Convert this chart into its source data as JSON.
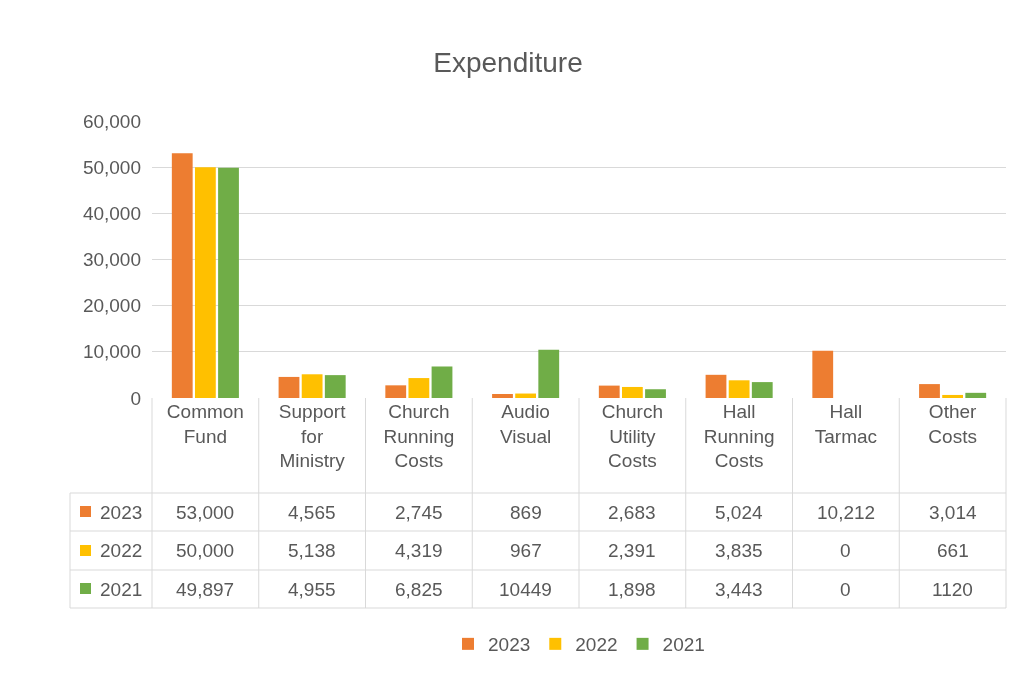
{
  "chart_data": {
    "type": "bar",
    "title": "Expenditure",
    "categories": [
      "Common Fund",
      "Support for Ministry",
      "Church Running Costs",
      "Audio Visual",
      "Church Utility Costs",
      "Hall Running Costs",
      "Hall Tarmac",
      "Other Costs"
    ],
    "series": [
      {
        "name": "2023",
        "color": "#ed7d31",
        "values": [
          53000,
          4565,
          2745,
          869,
          2683,
          5024,
          10212,
          3014
        ],
        "value_labels": [
          "53,000",
          "4,565",
          "2,745",
          "869",
          "2,683",
          "5,024",
          "10,212",
          "3,014"
        ]
      },
      {
        "name": "2022",
        "color": "#ffc000",
        "values": [
          50000,
          5138,
          4319,
          967,
          2391,
          3835,
          0,
          661
        ],
        "value_labels": [
          "50,000",
          "5,138",
          "4,319",
          "967",
          "2,391",
          "3,835",
          "0",
          "661"
        ]
      },
      {
        "name": "2021",
        "color": "#70ad47",
        "values": [
          49897,
          4955,
          6825,
          10449,
          1898,
          3443,
          0,
          1120
        ],
        "value_labels": [
          "49,897",
          "4,955",
          "6,825",
          "10449",
          "1,898",
          "3,443",
          "0",
          "1120"
        ]
      }
    ],
    "ylim": [
      0,
      60000
    ],
    "yticks": [
      0,
      {
        "value": 10000,
        "label": "10,000"
      },
      {
        "value": 20000,
        "label": "20,000"
      },
      {
        "value": 30000,
        "label": "30,000"
      },
      {
        "value": 40000,
        "label": "40,000"
      },
      {
        "value": 50000,
        "label": "50,000"
      },
      {
        "value": 60000,
        "label": "60,000"
      }
    ],
    "grid": "y",
    "legend": "bottom"
  }
}
